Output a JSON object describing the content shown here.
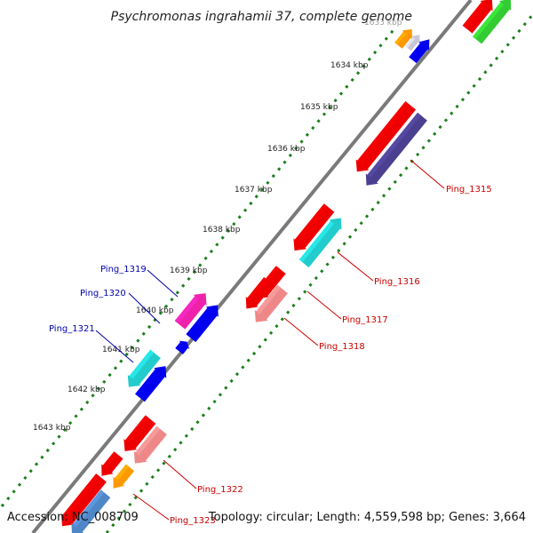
{
  "title": "Psychromonas ingrahamii 37, complete genome",
  "footer": {
    "accession": "Accession: NC_008709",
    "summary": "Topology: circular; Length: 4,559,598 bp; Genes: 3,664"
  },
  "colors": {
    "backbone": "#7a7a7a",
    "tick_track": "#1a7f1a",
    "label_red": "#cc0000",
    "label_blue": "#0000aa"
  },
  "scale_labels": [
    "1633 kbp",
    "1634 kbp",
    "1635 kbp",
    "1636 kbp",
    "1637 kbp",
    "1638 kbp",
    "1639 kbp",
    "1640 kbp",
    "1641 kbp",
    "1642 kbp",
    "1643 kbp"
  ],
  "gene_labels_right": [
    "Ping_1315",
    "Ping_1316",
    "Ping_1317",
    "Ping_1318",
    "Ping_1322",
    "Ping_1323"
  ],
  "gene_labels_left": [
    "Ping_1319",
    "Ping_1320",
    "Ping_1321"
  ],
  "gene_colors": {
    "red": "#ee0000",
    "green": "#33cc33",
    "orange": "#ff9900",
    "silver": "#c8c8d8",
    "blue": "#0000ee",
    "navy": "#4b4090",
    "cyan": "#22cccc",
    "salmon": "#ee8888",
    "magenta": "#ee22aa",
    "steel": "#4f86c6"
  }
}
